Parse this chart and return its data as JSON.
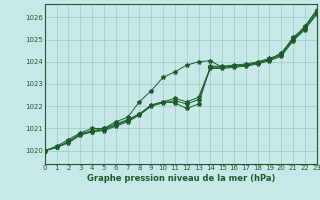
{
  "title": "Graphe pression niveau de la mer (hPa)",
  "bg_color": "#c8e8e8",
  "plot_bg_color": "#c8e8e8",
  "grid_color": "#a0c8c8",
  "line_color": "#1a5c2a",
  "xlim": [
    0,
    23
  ],
  "ylim": [
    1019.4,
    1026.6
  ],
  "yticks": [
    1020,
    1021,
    1022,
    1023,
    1024,
    1025,
    1026
  ],
  "xticks": [
    0,
    1,
    2,
    3,
    4,
    5,
    6,
    7,
    8,
    9,
    10,
    11,
    12,
    13,
    14,
    15,
    16,
    17,
    18,
    19,
    20,
    21,
    22,
    23
  ],
  "series1": [
    1020.0,
    1020.2,
    1020.5,
    1020.8,
    1021.0,
    1021.0,
    1021.3,
    1021.5,
    1022.2,
    1022.7,
    1023.3,
    1023.55,
    1023.85,
    1024.0,
    1024.05,
    1023.75,
    1023.8,
    1023.85,
    1023.95,
    1024.1,
    1024.4,
    1025.05,
    1025.6,
    1026.35
  ],
  "series2": [
    1020.0,
    1020.15,
    1020.4,
    1020.75,
    1020.85,
    1020.95,
    1021.15,
    1021.35,
    1021.65,
    1022.05,
    1022.2,
    1022.15,
    1021.9,
    1022.1,
    1023.8,
    1023.8,
    1023.85,
    1023.9,
    1024.0,
    1024.15,
    1024.35,
    1025.1,
    1025.55,
    1026.3
  ],
  "series3": [
    1020.0,
    1020.15,
    1020.4,
    1020.75,
    1020.9,
    1021.0,
    1021.2,
    1021.4,
    1021.65,
    1022.05,
    1022.2,
    1022.35,
    1022.2,
    1022.4,
    1023.75,
    1023.75,
    1023.8,
    1023.85,
    1023.95,
    1024.1,
    1024.3,
    1025.0,
    1025.5,
    1026.2
  ],
  "series4": [
    1020.0,
    1020.15,
    1020.35,
    1020.7,
    1020.85,
    1020.9,
    1021.1,
    1021.3,
    1021.6,
    1022.0,
    1022.15,
    1022.25,
    1022.1,
    1022.3,
    1023.7,
    1023.7,
    1023.75,
    1023.8,
    1023.9,
    1024.05,
    1024.25,
    1024.95,
    1025.45,
    1026.15
  ]
}
